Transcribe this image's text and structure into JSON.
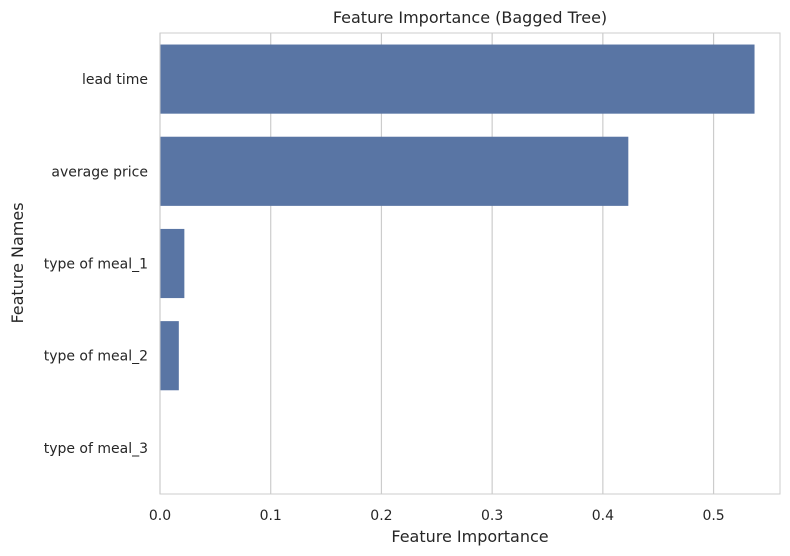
{
  "chart_data": {
    "type": "bar",
    "orientation": "horizontal",
    "title": "Feature Importance (Bagged Tree)",
    "xlabel": "Feature Importance",
    "ylabel": "Feature Names",
    "categories": [
      "lead time",
      "average price",
      "type of meal_1",
      "type of meal_2",
      "type of meal_3"
    ],
    "values": [
      0.537,
      0.423,
      0.022,
      0.017,
      0.0
    ],
    "xlim": [
      0,
      0.56
    ],
    "xticks": [
      "0.0",
      "0.1",
      "0.2",
      "0.3",
      "0.4",
      "0.5"
    ],
    "grid": "vertical",
    "bar_color": "#5975a4",
    "grid_color": "#cccccc"
  }
}
